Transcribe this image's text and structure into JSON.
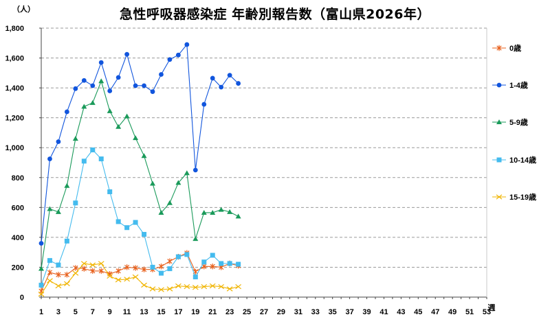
{
  "chart_data": {
    "type": "line",
    "title": "急性呼吸器感染症 年齢別報告数（富山県2026年）",
    "ylabel": "（人）",
    "xlabel": "週",
    "ylim": [
      0,
      1800
    ],
    "yticks": [
      0,
      200,
      400,
      600,
      800,
      1000,
      1200,
      1400,
      1600,
      1800
    ],
    "ytick_labels": [
      "0",
      "200",
      "400",
      "600",
      "800",
      "1,000",
      "1,200",
      "1,400",
      "1,600",
      "1,800"
    ],
    "xlim": [
      1,
      53
    ],
    "xticks": [
      1,
      3,
      5,
      7,
      9,
      11,
      13,
      15,
      17,
      19,
      21,
      23,
      25,
      27,
      29,
      31,
      33,
      35,
      37,
      39,
      41,
      43,
      45,
      47,
      49,
      51,
      53
    ],
    "grid": "horizontal dashed",
    "legend_position": "right",
    "x": [
      1,
      2,
      3,
      4,
      5,
      6,
      7,
      8,
      9,
      10,
      11,
      12,
      13,
      14,
      15,
      16,
      17,
      18,
      19,
      20,
      21,
      22,
      23,
      24
    ],
    "series": [
      {
        "name": "0歳",
        "color": "#E8601C",
        "marker": "asterisk",
        "values": [
          40,
          165,
          150,
          150,
          195,
          190,
          175,
          175,
          155,
          175,
          200,
          195,
          185,
          185,
          205,
          240,
          270,
          295,
          170,
          205,
          205,
          200,
          225,
          210
        ]
      },
      {
        "name": "1-4歳",
        "color": "#1155DD",
        "marker": "circle",
        "values": [
          360,
          925,
          1040,
          1240,
          1395,
          1450,
          1415,
          1570,
          1380,
          1470,
          1625,
          1415,
          1415,
          1375,
          1490,
          1590,
          1620,
          1690,
          850,
          1290,
          1465,
          1405,
          1485,
          1430
        ]
      },
      {
        "name": "5-9歳",
        "color": "#1A9A5A",
        "marker": "triangle",
        "values": [
          190,
          590,
          570,
          745,
          1060,
          1275,
          1300,
          1445,
          1245,
          1140,
          1210,
          1065,
          945,
          760,
          565,
          630,
          765,
          830,
          390,
          565,
          565,
          585,
          570,
          540
        ]
      },
      {
        "name": "10-14歳",
        "color": "#44BBEE",
        "marker": "square",
        "values": [
          80,
          245,
          215,
          375,
          630,
          910,
          985,
          925,
          705,
          505,
          465,
          500,
          420,
          200,
          160,
          190,
          270,
          285,
          135,
          235,
          280,
          225,
          225,
          220
        ]
      },
      {
        "name": "15-19歳",
        "color": "#F0B400",
        "marker": "x",
        "values": [
          20,
          110,
          75,
          90,
          160,
          225,
          215,
          225,
          140,
          115,
          120,
          135,
          80,
          55,
          50,
          55,
          75,
          70,
          65,
          70,
          75,
          70,
          55,
          70
        ]
      }
    ]
  }
}
